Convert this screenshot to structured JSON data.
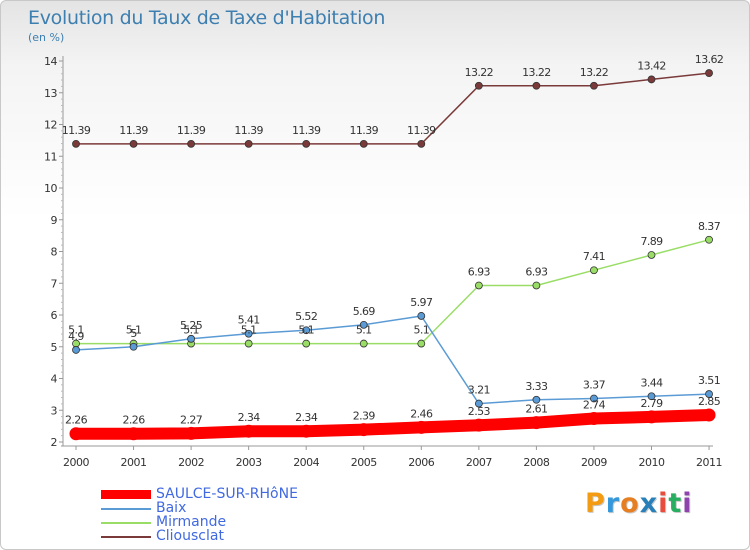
{
  "title": "Evolution du Taux de Taxe d'Habitation",
  "unit": "(en %)",
  "brand": {
    "text": "Proxiti",
    "letter_colors": [
      "#f39c12",
      "#3498db",
      "#e67e22",
      "#2980b9",
      "#e74c3c",
      "#27ae60",
      "#8e44ad"
    ]
  },
  "chart_data": {
    "type": "line",
    "title": "Evolution du Taux de Taxe d'Habitation",
    "ylabel": "(en %)",
    "xlabel": "",
    "categories": [
      "2000",
      "2001",
      "2002",
      "2003",
      "2004",
      "2005",
      "2006",
      "2007",
      "2008",
      "2009",
      "2010",
      "2011"
    ],
    "ylim": [
      2,
      14
    ],
    "yticks": [
      "2",
      "3",
      "4",
      "5",
      "6",
      "7",
      "8",
      "9",
      "10",
      "11",
      "12",
      "13",
      "14"
    ],
    "grid": false,
    "legend_position": "bottom-left",
    "series": [
      {
        "name": "SAULCE-SUR-RHôNE",
        "color": "#ff0000",
        "values": [
          2.26,
          2.26,
          2.27,
          2.34,
          2.34,
          2.39,
          2.46,
          2.53,
          2.61,
          2.74,
          2.79,
          2.85
        ],
        "labels": [
          "2.26",
          "2.26",
          "2.27",
          "2.34",
          "2.34",
          "2.39",
          "2.46",
          "2.53",
          "2.61",
          "2.74",
          "2.79",
          "2.85"
        ]
      },
      {
        "name": "Baix",
        "color": "#5b9bd5",
        "values": [
          4.9,
          5.0,
          5.25,
          5.41,
          5.52,
          5.69,
          5.97,
          3.21,
          3.33,
          3.37,
          3.44,
          3.51
        ],
        "labels": [
          "4.9",
          "5",
          "5.25",
          "5.41",
          "5.52",
          "5.69",
          "5.97",
          "3.21",
          "3.33",
          "3.37",
          "3.44",
          "3.51"
        ]
      },
      {
        "name": "Mirmande",
        "color": "#99dd66",
        "values": [
          5.1,
          5.1,
          5.1,
          5.1,
          5.1,
          5.1,
          5.1,
          6.93,
          6.93,
          7.41,
          7.89,
          8.37
        ],
        "labels": [
          "5.1",
          "5.1",
          "5.1",
          "5.1",
          "5.1",
          "5.1",
          "5.1",
          "6.93",
          "6.93",
          "7.41",
          "7.89",
          "8.37"
        ]
      },
      {
        "name": "Cliousclat",
        "color": "#7b3a3a",
        "values": [
          11.39,
          11.39,
          11.39,
          11.39,
          11.39,
          11.39,
          11.39,
          13.22,
          13.22,
          13.22,
          13.42,
          13.62
        ],
        "labels": [
          "11.39",
          "11.39",
          "11.39",
          "11.39",
          "11.39",
          "11.39",
          "11.39",
          "13.22",
          "13.22",
          "13.22",
          "13.42",
          "13.62"
        ]
      }
    ]
  }
}
